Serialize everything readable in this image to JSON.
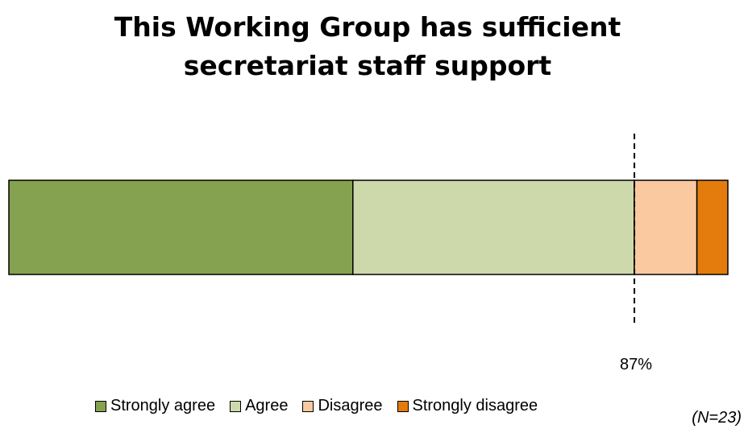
{
  "chart_data": {
    "type": "bar",
    "orientation": "horizontal",
    "stacked": true,
    "title": "This Working Group has sufficient\nsecretariat staff support",
    "series": [
      {
        "name": "Strongly agree",
        "value": 47.8,
        "color": "#84a24f"
      },
      {
        "name": "Agree",
        "value": 39.1,
        "color": "#cdd9ab"
      },
      {
        "name": "Disagree",
        "value": 8.7,
        "color": "#fbc9a0"
      },
      {
        "name": "Strongly disagree",
        "value": 4.3,
        "color": "#e47c0d"
      }
    ],
    "xlim": [
      0,
      100
    ],
    "reference_line": {
      "value": 87,
      "label": "87%"
    },
    "legend_position": "bottom",
    "note": "(N=23)",
    "grid": false
  }
}
